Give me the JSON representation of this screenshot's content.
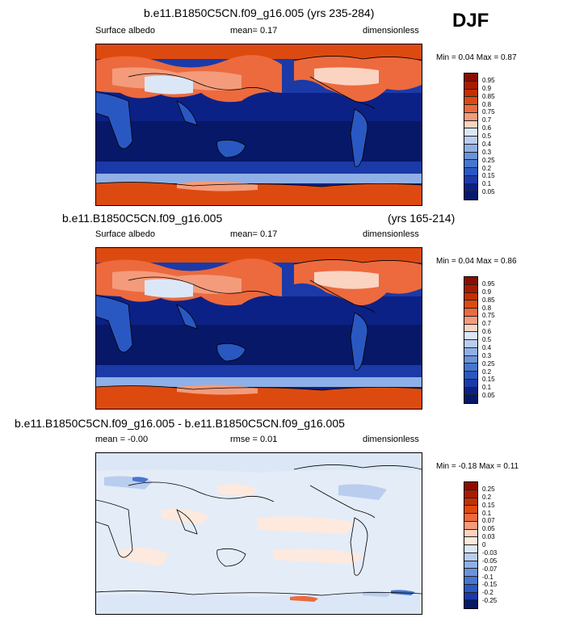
{
  "season": "DJF",
  "panels": [
    {
      "title": "b.e11.B1850C5CN.f09_g16.005 (yrs 235-284)",
      "title_right": "",
      "left": "Surface albedo",
      "center": "mean=   0.17",
      "right": "dimensionless",
      "minmax": "Min =   0.04 Max =   0.87",
      "scale": "abs",
      "levels": [
        "0.95",
        "0.9",
        "0.85",
        "0.8",
        "0.75",
        "0.7",
        "0.6",
        "0.5",
        "0.4",
        "0.3",
        "0.25",
        "0.2",
        "0.15",
        "0.1",
        "0.05"
      ]
    },
    {
      "title": "b.e11.B1850C5CN.f09_g16.005",
      "title_right": "(yrs 165-214)",
      "left": "Surface albedo",
      "center": "mean=   0.17",
      "right": "dimensionless",
      "minmax": "Min =   0.04 Max =   0.86",
      "scale": "abs",
      "levels": [
        "0.95",
        "0.9",
        "0.85",
        "0.8",
        "0.75",
        "0.7",
        "0.6",
        "0.5",
        "0.4",
        "0.3",
        "0.25",
        "0.2",
        "0.15",
        "0.1",
        "0.05"
      ]
    },
    {
      "title": "b.e11.B1850C5CN.f09_g16.005 - b.e11.B1850C5CN.f09_g16.005",
      "title_right": "",
      "left": "mean =  -0.00",
      "center": "rmse =  0.01",
      "right": "dimensionless",
      "minmax": "Min =  -0.18 Max =   0.11",
      "scale": "diff",
      "levels": [
        "0.25",
        "0.2",
        "0.15",
        "0.1",
        "0.07",
        "0.05",
        "0.03",
        "0",
        "-0.03",
        "-0.05",
        "-0.07",
        "-0.1",
        "-0.15",
        "-0.2",
        "-0.25"
      ]
    }
  ],
  "colors": {
    "abs": [
      "#8b0d00",
      "#a81a00",
      "#c43000",
      "#dd4a10",
      "#ec6a3e",
      "#f49b7b",
      "#fbd3c1",
      "#dbe7f6",
      "#b9cdef",
      "#8fb0e6",
      "#6a93dc",
      "#4676d0",
      "#2a58c2",
      "#1b3aa8",
      "#0c2186",
      "#071868"
    ],
    "diff": [
      "#8b0d00",
      "#a81a00",
      "#c43000",
      "#dd4a10",
      "#ec6a3e",
      "#f49b7b",
      "#fbd3c1",
      "#fde9de",
      "#dbe7f6",
      "#b9cdef",
      "#8fb0e6",
      "#6a93dc",
      "#4676d0",
      "#2a58c2",
      "#1b3aa8",
      "#071868"
    ]
  }
}
